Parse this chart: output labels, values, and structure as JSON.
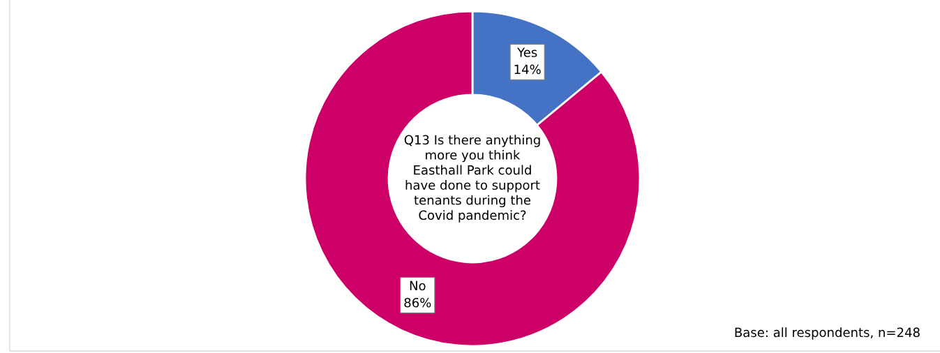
{
  "chart_data": {
    "type": "donut",
    "title": "Q13 Is there anything more you think Easthall Park could have done to support tenants during the Covid pandemic?",
    "categories": [
      "Yes",
      "No"
    ],
    "values": [
      14,
      86
    ],
    "colors": [
      "#4472c4",
      "#cc0066"
    ],
    "value_labels": [
      "14%",
      "86%"
    ],
    "annotations": [
      "Base: all respondents, n=248"
    ]
  }
}
